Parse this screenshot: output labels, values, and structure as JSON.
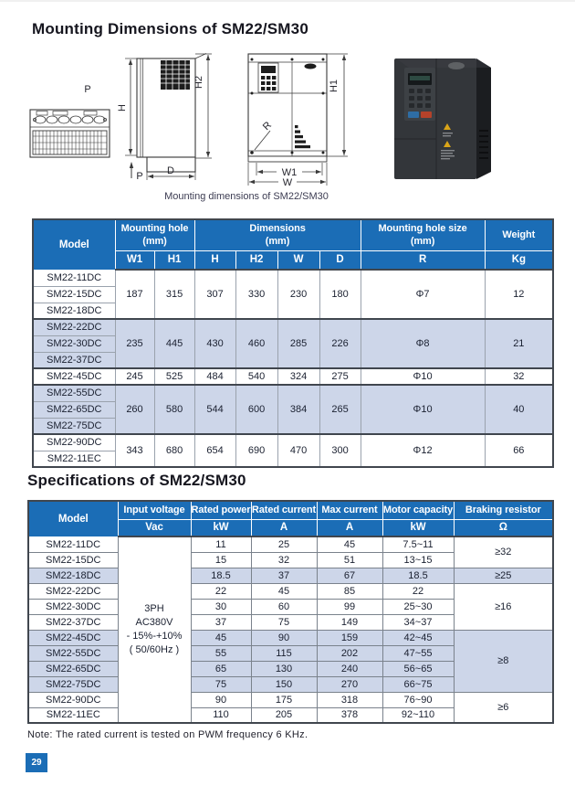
{
  "page": {
    "title1": "Mounting Dimensions of SM22/SM30",
    "title2": "Specifications of SM22/SM30",
    "caption": "Mounting dimensions of SM22/SM30",
    "note": "Note: The rated current is tested on PWM frequency 6 KHz.",
    "page_number": "29"
  },
  "colors": {
    "header_blue": "#1B6DB6",
    "shaded_row_blue": "#CDD6E9",
    "border_dark": "#40464E",
    "border_gray": "#9AA2AD",
    "text_dark": "#1A2030"
  },
  "diagram_labels": {
    "p_top": "P",
    "h": "H",
    "h2": "H2",
    "p_arrow": "P",
    "d": "D",
    "h1": "H1",
    "r": "R",
    "w1": "W1",
    "w": "W"
  },
  "dimensions_table": {
    "header": {
      "model": "Model",
      "mounting_hole": "Mounting hole",
      "mounting_hole_unit": "(mm)",
      "dimensions": "Dimensions",
      "dimensions_unit": "(mm)",
      "hole_size": "Mounting hole size",
      "hole_size_unit": "(mm)",
      "weight": "Weight",
      "sub": [
        "W1",
        "H1",
        "H",
        "H2",
        "W",
        "D",
        "R",
        "Kg"
      ]
    },
    "groups": [
      {
        "models": [
          "SM22-11DC",
          "SM22-15DC",
          "SM22-18DC"
        ],
        "w1": "187",
        "h1": "315",
        "h": "307",
        "h2": "330",
        "w": "230",
        "d": "180",
        "r": "Φ7",
        "kg": "12",
        "shaded": false
      },
      {
        "models": [
          "SM22-22DC",
          "SM22-30DC",
          "SM22-37DC"
        ],
        "w1": "235",
        "h1": "445",
        "h": "430",
        "h2": "460",
        "w": "285",
        "d": "226",
        "r": "Φ8",
        "kg": "21",
        "shaded": true
      },
      {
        "models": [
          "SM22-45DC"
        ],
        "w1": "245",
        "h1": "525",
        "h": "484",
        "h2": "540",
        "w": "324",
        "d": "275",
        "r": "Φ10",
        "kg": "32",
        "shaded": false
      },
      {
        "models": [
          "SM22-55DC",
          "SM22-65DC",
          "SM22-75DC"
        ],
        "w1": "260",
        "h1": "580",
        "h": "544",
        "h2": "600",
        "w": "384",
        "d": "265",
        "r": "Φ10",
        "kg": "40",
        "shaded": true
      },
      {
        "models": [
          "SM22-90DC",
          "SM22-11EC"
        ],
        "w1": "343",
        "h1": "680",
        "h": "654",
        "h2": "690",
        "w": "470",
        "d": "300",
        "r": "Φ12",
        "kg": "66",
        "shaded": false
      }
    ]
  },
  "spec_table": {
    "header": {
      "model": "Model",
      "cols": [
        {
          "label": "Input voltage",
          "unit": "Vac"
        },
        {
          "label": "Rated power",
          "unit": "kW"
        },
        {
          "label": "Rated current",
          "unit": "A"
        },
        {
          "label": "Max current",
          "unit": "A"
        },
        {
          "label": "Motor capacity",
          "unit": "kW"
        },
        {
          "label": "Braking resistor",
          "unit": "Ω"
        }
      ]
    },
    "input_voltage_lines": [
      "3PH",
      "AC380V",
      "- 15%-+10%",
      "( 50/60Hz )"
    ],
    "rows": [
      {
        "model": "SM22-11DC",
        "power": "11",
        "current": "25",
        "max": "45",
        "motor": "7.5~11",
        "shaded": false
      },
      {
        "model": "SM22-15DC",
        "power": "15",
        "current": "32",
        "max": "51",
        "motor": "13~15",
        "shaded": false
      },
      {
        "model": "SM22-18DC",
        "power": "18.5",
        "current": "37",
        "max": "67",
        "motor": "18.5",
        "shaded": true
      },
      {
        "model": "SM22-22DC",
        "power": "22",
        "current": "45",
        "max": "85",
        "motor": "22",
        "shaded": false
      },
      {
        "model": "SM22-30DC",
        "power": "30",
        "current": "60",
        "max": "99",
        "motor": "25~30",
        "shaded": false
      },
      {
        "model": "SM22-37DC",
        "power": "37",
        "current": "75",
        "max": "149",
        "motor": "34~37",
        "shaded": false
      },
      {
        "model": "SM22-45DC",
        "power": "45",
        "current": "90",
        "max": "159",
        "motor": "42~45",
        "shaded": true
      },
      {
        "model": "SM22-55DC",
        "power": "55",
        "current": "115",
        "max": "202",
        "motor": "47~55",
        "shaded": true
      },
      {
        "model": "SM22-65DC",
        "power": "65",
        "current": "130",
        "max": "240",
        "motor": "56~65",
        "shaded": true
      },
      {
        "model": "SM22-75DC",
        "power": "75",
        "current": "150",
        "max": "270",
        "motor": "66~75",
        "shaded": true
      },
      {
        "model": "SM22-90DC",
        "power": "90",
        "current": "175",
        "max": "318",
        "motor": "76~90",
        "shaded": false
      },
      {
        "model": "SM22-11EC",
        "power": "110",
        "current": "205",
        "max": "378",
        "motor": "92~110",
        "shaded": false
      }
    ],
    "braking_groups": [
      {
        "value": "≥32",
        "span": 2
      },
      {
        "value": "≥25",
        "span": 1
      },
      {
        "value": "≥16",
        "span": 3
      },
      {
        "value": "≥8",
        "span": 4
      },
      {
        "value": "≥6",
        "span": 2
      }
    ]
  }
}
